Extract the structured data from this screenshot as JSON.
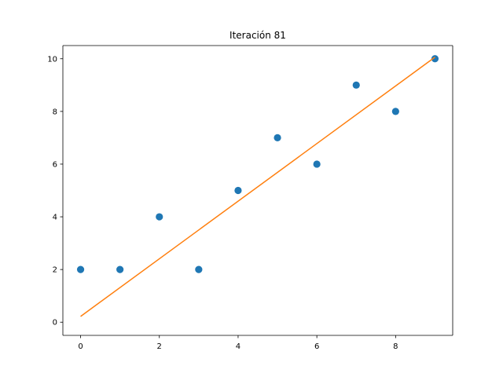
{
  "chart_data": {
    "type": "scatter",
    "title": "Iteración 81",
    "xlabel": "",
    "ylabel": "",
    "xlim": [
      -0.45,
      9.45
    ],
    "ylim": [
      -0.5,
      10.5
    ],
    "xticks": [
      0,
      2,
      4,
      6,
      8
    ],
    "yticks": [
      0,
      2,
      4,
      6,
      8,
      10
    ],
    "grid": false,
    "series": [
      {
        "type": "scatter",
        "color": "#1f77b4",
        "x": [
          0,
          1,
          2,
          3,
          4,
          5,
          6,
          7,
          8,
          9
        ],
        "y": [
          2,
          2,
          4,
          2,
          5,
          7,
          6,
          9,
          8,
          10
        ]
      },
      {
        "type": "line",
        "color": "#ff7f0e",
        "x": [
          0,
          9
        ],
        "y": [
          0.22,
          10.06
        ]
      }
    ]
  }
}
